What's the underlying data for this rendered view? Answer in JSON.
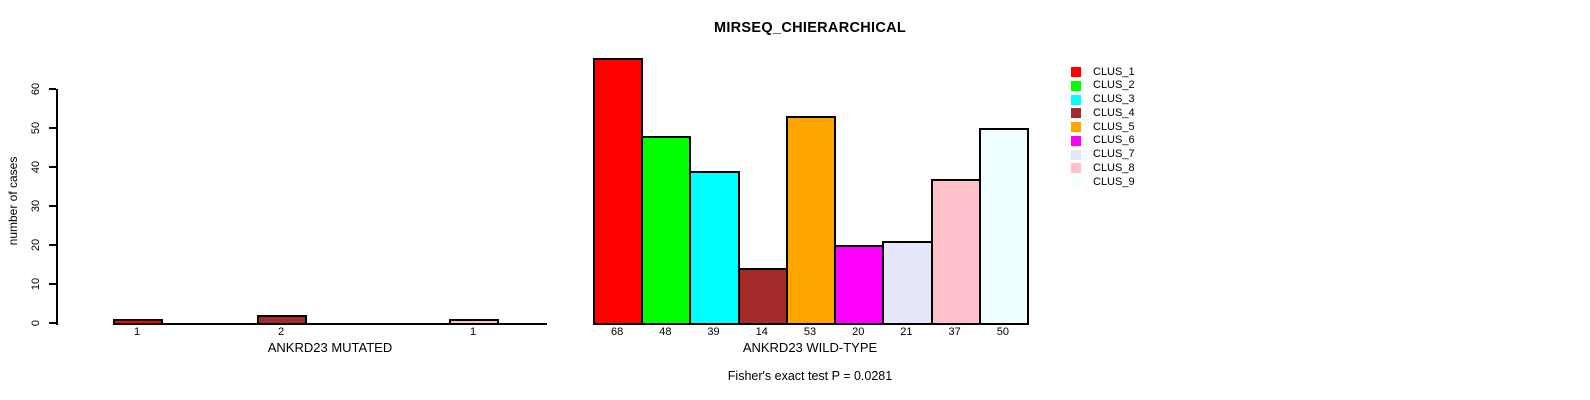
{
  "title": "MIRSEQ_CHIERARCHICAL",
  "chart_data": {
    "type": "bar",
    "title": "MIRSEQ_CHIERARCHICAL",
    "ylabel": "number of cases",
    "ylim": [
      0,
      60
    ],
    "yticks": [
      0,
      10,
      20,
      30,
      40,
      50,
      60
    ],
    "grid": false,
    "categories": [
      "CLUS_1",
      "CLUS_2",
      "CLUS_3",
      "CLUS_4",
      "CLUS_5",
      "CLUS_6",
      "CLUS_7",
      "CLUS_8",
      "CLUS_9"
    ],
    "colors": [
      "#FF0000",
      "#00FF00",
      "#00FFFF",
      "#A52A2A",
      "#FFA500",
      "#FF00FF",
      "#E6E6FA",
      "#FFC0CB",
      "#F0FFFF"
    ],
    "panels": [
      {
        "xlabel": "ANKRD23 MUTATED",
        "values": [
          1,
          0,
          0,
          2,
          0,
          0,
          0,
          1,
          0
        ],
        "bar_labels": [
          "1",
          "",
          "",
          "2",
          "",
          "",
          "",
          "1",
          ""
        ]
      },
      {
        "xlabel": "ANKRD23 WILD-TYPE",
        "values": [
          68,
          48,
          39,
          14,
          53,
          20,
          21,
          37,
          50
        ],
        "bar_labels": [
          "68",
          "48",
          "39",
          "14",
          "53",
          "20",
          "21",
          "37",
          "50"
        ]
      }
    ],
    "legend": {
      "position": "right",
      "entries": [
        "CLUS_1",
        "CLUS_2",
        "CLUS_3",
        "CLUS_4",
        "CLUS_5",
        "CLUS_6",
        "CLUS_7",
        "CLUS_8",
        "CLUS_9"
      ]
    },
    "annotation": "Fisher's exact test P = 0.0281"
  }
}
